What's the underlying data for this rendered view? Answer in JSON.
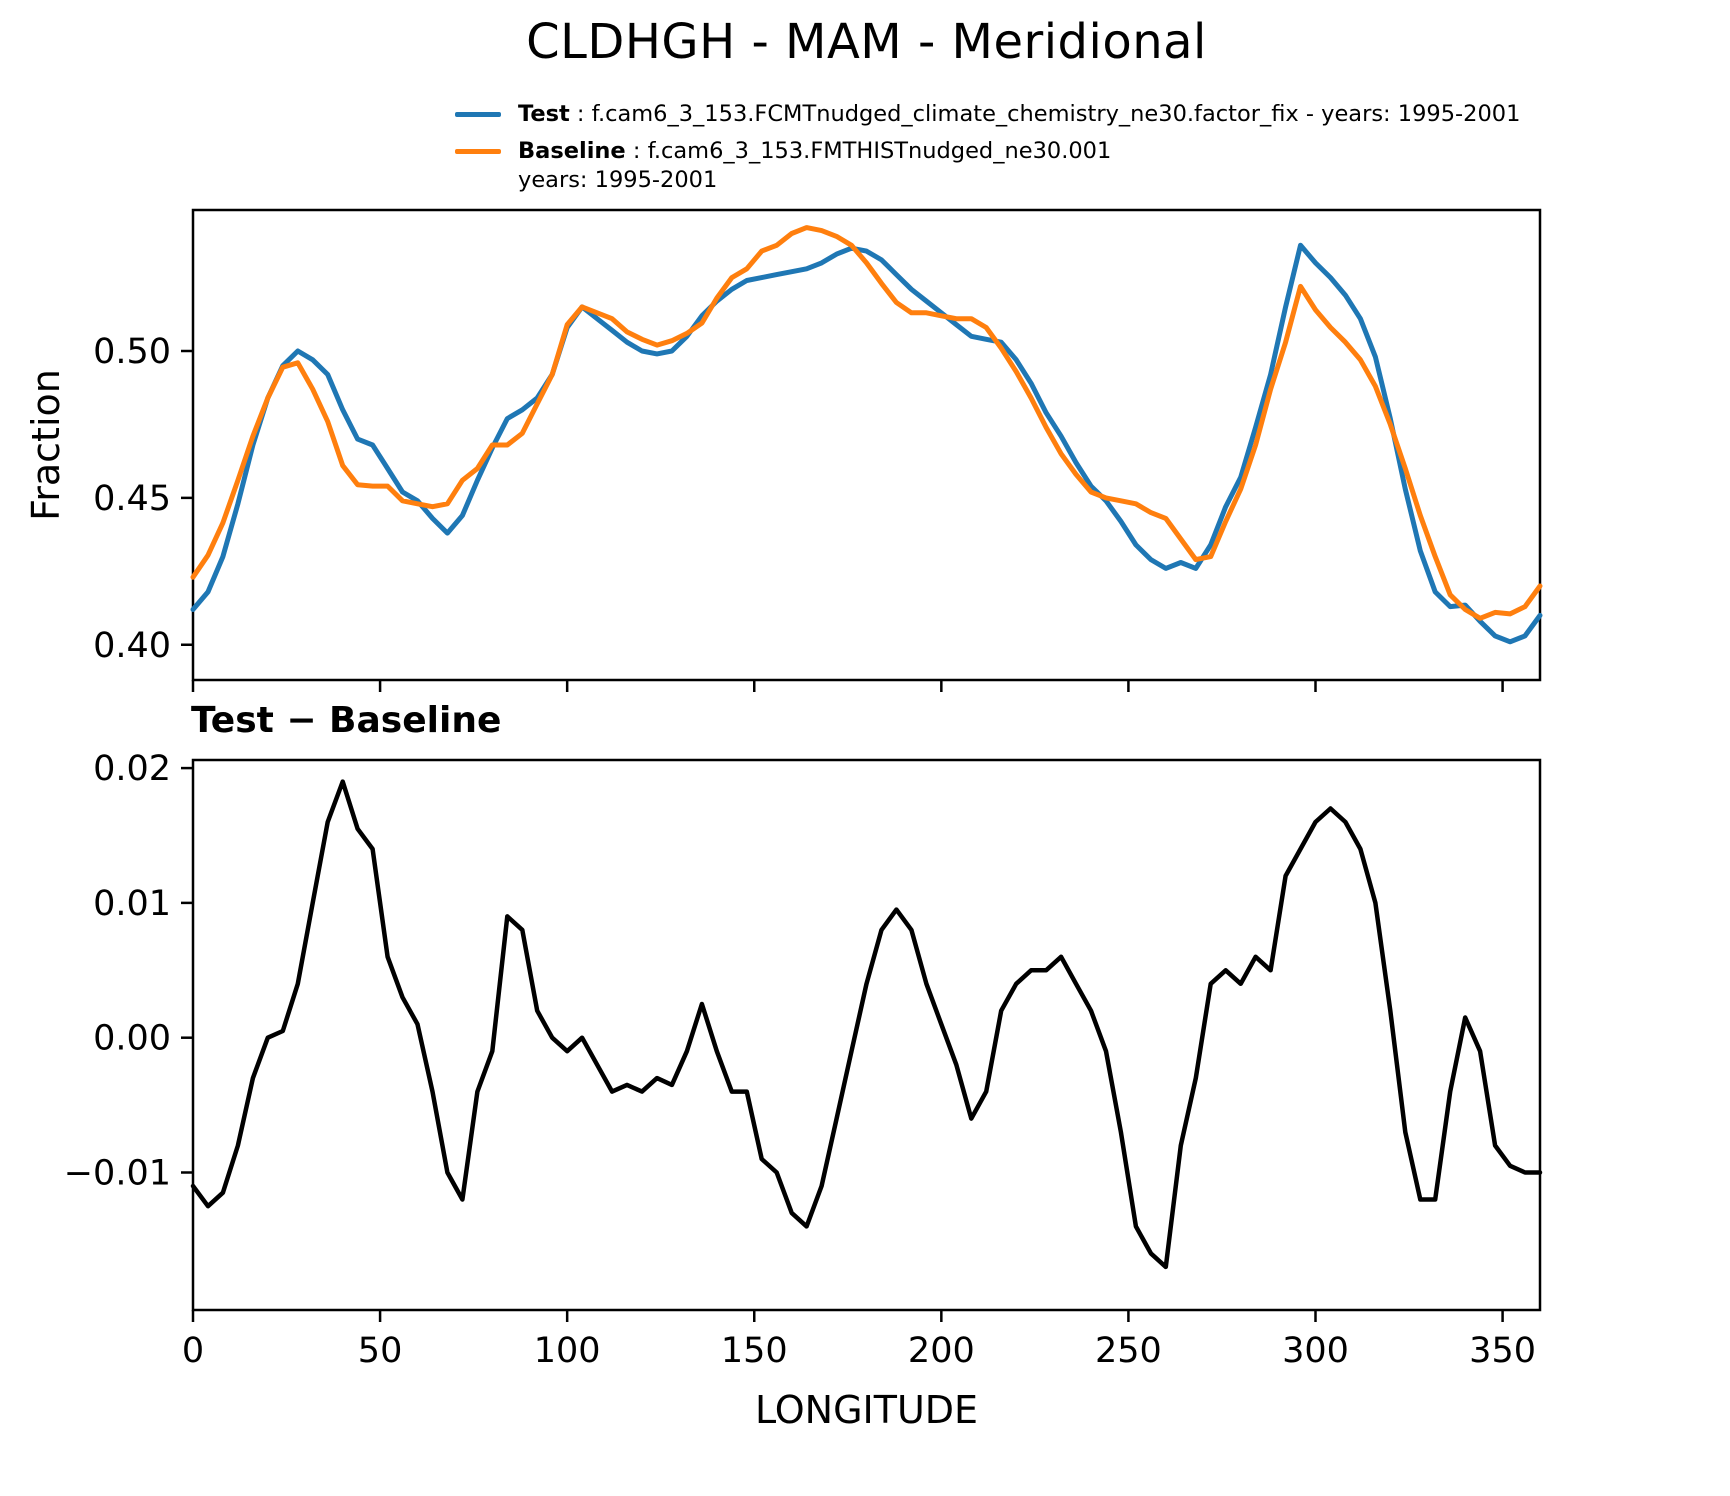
{
  "colors": {
    "test": "#1f77b4",
    "baseline": "#ff7f0e",
    "diff": "#000000",
    "axis": "#000000"
  },
  "legend": {
    "test_label": "Test",
    "test_desc": " : f.cam6_3_153.FCMTnudged_climate_chemistry_ne30.factor_fix - years: 1995-2001",
    "baseline_label": "Baseline",
    "baseline_desc": " : f.cam6_3_153.FMTHISTnudged_ne30.001",
    "baseline_years": "years: 1995-2001"
  },
  "chart_data": [
    {
      "type": "line",
      "title": "CLDHGH - MAM - Meridional",
      "ylabel": "Fraction",
      "xlim": [
        0,
        360
      ],
      "ylim": [
        0.388,
        0.548
      ],
      "yticks": [
        0.4,
        0.45,
        0.5
      ],
      "ytick_labels": [
        "0.40",
        "0.45",
        "0.50"
      ],
      "xticks": [
        0,
        50,
        100,
        150,
        200,
        250,
        300,
        350
      ],
      "xtick_labels": [
        "0",
        "50",
        "100",
        "150",
        "200",
        "250",
        "300",
        "350"
      ],
      "grid": false,
      "legend_position": "upper-left-above",
      "x": [
        0,
        4,
        8,
        12,
        16,
        20,
        24,
        28,
        32,
        36,
        40,
        44,
        48,
        52,
        56,
        60,
        64,
        68,
        72,
        76,
        80,
        84,
        88,
        92,
        96,
        100,
        104,
        108,
        112,
        116,
        120,
        124,
        128,
        132,
        136,
        140,
        144,
        148,
        152,
        156,
        160,
        164,
        168,
        172,
        176,
        180,
        184,
        188,
        192,
        196,
        200,
        204,
        208,
        212,
        216,
        220,
        224,
        228,
        232,
        236,
        240,
        244,
        248,
        252,
        256,
        260,
        264,
        268,
        272,
        276,
        280,
        284,
        288,
        292,
        296,
        300,
        304,
        308,
        312,
        316,
        320,
        324,
        328,
        332,
        336,
        340,
        344,
        348,
        352,
        356,
        360
      ],
      "series": [
        {
          "name": "Test",
          "color": "#1f77b4",
          "values": [
            0.412,
            0.418,
            0.43,
            0.448,
            0.468,
            0.484,
            0.495,
            0.5,
            0.497,
            0.492,
            0.48,
            0.47,
            0.468,
            0.46,
            0.452,
            0.449,
            0.443,
            0.438,
            0.444,
            0.456,
            0.467,
            0.477,
            0.48,
            0.484,
            0.492,
            0.508,
            0.515,
            0.511,
            0.507,
            0.503,
            0.5,
            0.499,
            0.5,
            0.505,
            0.512,
            0.517,
            0.521,
            0.524,
            0.525,
            0.526,
            0.527,
            0.528,
            0.53,
            0.533,
            0.535,
            0.534,
            0.531,
            0.526,
            0.521,
            0.517,
            0.513,
            0.509,
            0.505,
            0.504,
            0.503,
            0.497,
            0.489,
            0.479,
            0.471,
            0.462,
            0.454,
            0.449,
            0.442,
            0.434,
            0.429,
            0.426,
            0.428,
            0.426,
            0.434,
            0.447,
            0.457,
            0.474,
            0.492,
            0.515,
            0.536,
            0.53,
            0.525,
            0.519,
            0.511,
            0.498,
            0.477,
            0.453,
            0.432,
            0.418,
            0.413,
            0.4135,
            0.408,
            0.403,
            0.401,
            0.403,
            0.41
          ]
        },
        {
          "name": "Baseline",
          "color": "#ff7f0e",
          "values": [
            0.423,
            0.4305,
            0.4415,
            0.456,
            0.471,
            0.484,
            0.4945,
            0.496,
            0.487,
            0.476,
            0.461,
            0.4545,
            0.454,
            0.454,
            0.449,
            0.448,
            0.447,
            0.448,
            0.456,
            0.46,
            0.468,
            0.468,
            0.472,
            0.482,
            0.492,
            0.509,
            0.515,
            0.513,
            0.511,
            0.5065,
            0.504,
            0.502,
            0.5035,
            0.506,
            0.5095,
            0.518,
            0.525,
            0.528,
            0.534,
            0.536,
            0.54,
            0.542,
            0.541,
            0.539,
            0.536,
            0.53,
            0.523,
            0.5165,
            0.513,
            0.513,
            0.512,
            0.511,
            0.511,
            0.508,
            0.501,
            0.493,
            0.484,
            0.474,
            0.465,
            0.458,
            0.452,
            0.45,
            0.449,
            0.448,
            0.445,
            0.443,
            0.436,
            0.429,
            0.43,
            0.442,
            0.453,
            0.468,
            0.487,
            0.503,
            0.522,
            0.514,
            0.508,
            0.503,
            0.497,
            0.488,
            0.475,
            0.46,
            0.444,
            0.43,
            0.417,
            0.412,
            0.409,
            0.411,
            0.4105,
            0.413,
            0.42
          ]
        }
      ]
    },
    {
      "type": "line",
      "title": "Test − Baseline",
      "xlabel": "LONGITUDE",
      "xlim": [
        0,
        360
      ],
      "ylim": [
        -0.0202,
        0.0206
      ],
      "yticks": [
        -0.01,
        0.0,
        0.01,
        0.02
      ],
      "ytick_labels": [
        "−0.01",
        "0.00",
        "0.01",
        "0.02"
      ],
      "xticks": [
        0,
        50,
        100,
        150,
        200,
        250,
        300,
        350
      ],
      "xtick_labels": [
        "0",
        "50",
        "100",
        "150",
        "200",
        "250",
        "300",
        "350"
      ],
      "grid": false,
      "x": [
        0,
        4,
        8,
        12,
        16,
        20,
        24,
        28,
        32,
        36,
        40,
        44,
        48,
        52,
        56,
        60,
        64,
        68,
        72,
        76,
        80,
        84,
        88,
        92,
        96,
        100,
        104,
        108,
        112,
        116,
        120,
        124,
        128,
        132,
        136,
        140,
        144,
        148,
        152,
        156,
        160,
        164,
        168,
        172,
        176,
        180,
        184,
        188,
        192,
        196,
        200,
        204,
        208,
        212,
        216,
        220,
        224,
        228,
        232,
        236,
        240,
        244,
        248,
        252,
        256,
        260,
        264,
        268,
        272,
        276,
        280,
        284,
        288,
        292,
        296,
        300,
        304,
        308,
        312,
        316,
        320,
        324,
        328,
        332,
        336,
        340,
        344,
        348,
        352,
        356,
        360
      ],
      "series": [
        {
          "name": "Test − Baseline",
          "color": "#000000",
          "values": [
            -0.011,
            -0.0125,
            -0.0115,
            -0.008,
            -0.003,
            0.0,
            0.0005,
            0.004,
            0.01,
            0.016,
            0.019,
            0.0155,
            0.014,
            0.006,
            0.003,
            0.001,
            -0.004,
            -0.01,
            -0.012,
            -0.004,
            -0.001,
            0.009,
            0.008,
            0.002,
            0.0,
            -0.001,
            0.0,
            -0.002,
            -0.004,
            -0.0035,
            -0.004,
            -0.003,
            -0.0035,
            -0.001,
            0.0025,
            -0.001,
            -0.004,
            -0.004,
            -0.009,
            -0.01,
            -0.013,
            -0.014,
            -0.011,
            -0.006,
            -0.001,
            0.004,
            0.008,
            0.0095,
            0.008,
            0.004,
            0.001,
            -0.002,
            -0.006,
            -0.004,
            0.002,
            0.004,
            0.005,
            0.005,
            0.006,
            0.004,
            0.002,
            -0.001,
            -0.007,
            -0.014,
            -0.016,
            -0.017,
            -0.008,
            -0.003,
            0.004,
            0.005,
            0.004,
            0.006,
            0.005,
            0.012,
            0.014,
            0.016,
            0.017,
            0.016,
            0.014,
            0.01,
            0.002,
            -0.007,
            -0.012,
            -0.012,
            -0.004,
            0.0015,
            -0.001,
            -0.008,
            -0.0095,
            -0.01,
            -0.01
          ]
        }
      ]
    }
  ]
}
